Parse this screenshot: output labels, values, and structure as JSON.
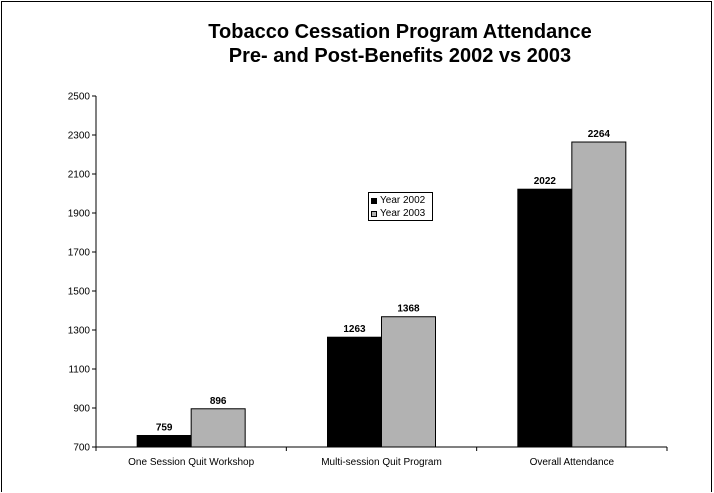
{
  "chart_data": {
    "type": "bar",
    "title": "Tobacco Cessation Program Attendance",
    "subtitle": "Pre- and Post-Benefits 2002 vs 2003",
    "categories": [
      "One Session Quit Workshop",
      "Multi-session Quit Program",
      "Overall Attendance"
    ],
    "series": [
      {
        "name": "Year 2002",
        "values": [
          759,
          1263,
          2022
        ],
        "color": "#000000"
      },
      {
        "name": "Year 2003",
        "values": [
          896,
          1368,
          2264
        ],
        "color": "#b2b2b2"
      }
    ],
    "ylim": [
      700,
      2500
    ],
    "yticks": [
      700,
      900,
      1100,
      1300,
      1500,
      1700,
      1900,
      2100,
      2300,
      2500
    ],
    "grid": false,
    "legend_position": "center"
  }
}
